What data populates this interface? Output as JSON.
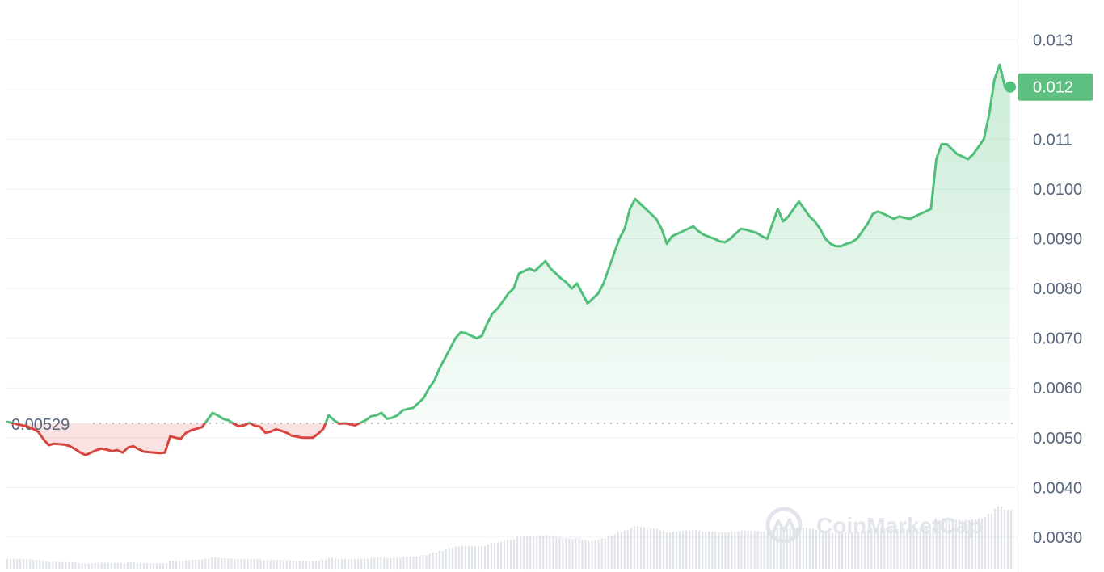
{
  "chart_data": {
    "type": "line",
    "title": "",
    "xlabel": "",
    "ylabel": "",
    "ylim": [
      0.0023,
      0.0138
    ],
    "yticks": [
      "0.013",
      "0.012",
      "0.011",
      "0.0100",
      "0.0090",
      "0.0080",
      "0.0070",
      "0.0060",
      "0.0050",
      "0.0040",
      "0.0030"
    ],
    "ytick_values": [
      0.013,
      0.012,
      0.011,
      0.01,
      0.009,
      0.008,
      0.007,
      0.006,
      0.005,
      0.004,
      0.003
    ],
    "reference": {
      "label": "0.00529",
      "value": 0.00529
    },
    "current_price": {
      "label": "0.012",
      "value": 0.01205
    },
    "grid": true,
    "colors": {
      "up": "#4fbf7a",
      "down": "#d8453f",
      "grid": "#eff2f5",
      "tag": "#5ec080",
      "axis_text": "#58667e",
      "volume": "#c9ced6"
    },
    "series": [
      {
        "values": [
          0.00532,
          0.0053,
          0.00527,
          0.00525,
          0.00522,
          0.00518,
          0.00512,
          0.00497,
          0.00485,
          0.00488,
          0.00487,
          0.00486,
          0.00483,
          0.00477,
          0.0047,
          0.00465,
          0.0047,
          0.00475,
          0.00478,
          0.00476,
          0.00473,
          0.00475,
          0.0047,
          0.0048,
          0.00483,
          0.00477,
          0.00472,
          0.00471,
          0.0047,
          0.00469,
          0.0047,
          0.00503,
          0.005,
          0.00498,
          0.0051,
          0.00515,
          0.00518,
          0.00521,
          0.00535,
          0.0055,
          0.00545,
          0.00538,
          0.00535,
          0.00528,
          0.00523,
          0.00525,
          0.0053,
          0.00524,
          0.00522,
          0.0051,
          0.00512,
          0.00517,
          0.00514,
          0.0051,
          0.00504,
          0.00502,
          0.005,
          0.005,
          0.005,
          0.00508,
          0.00518,
          0.00545,
          0.00535,
          0.00528,
          0.00529,
          0.00527,
          0.00525,
          0.0053,
          0.00535,
          0.00543,
          0.00545,
          0.0055,
          0.00538,
          0.0054,
          0.00545,
          0.00555,
          0.00558,
          0.0056,
          0.0057,
          0.0058,
          0.006,
          0.00615,
          0.0064,
          0.0066,
          0.0068,
          0.007,
          0.00712,
          0.0071,
          0.00705,
          0.007,
          0.00705,
          0.0073,
          0.0075,
          0.0076,
          0.00775,
          0.0079,
          0.008,
          0.0083,
          0.00835,
          0.0084,
          0.00835,
          0.00845,
          0.00855,
          0.0084,
          0.0083,
          0.0082,
          0.00812,
          0.008,
          0.0081,
          0.0079,
          0.0077,
          0.0078,
          0.0079,
          0.0081,
          0.0084,
          0.0087,
          0.009,
          0.0092,
          0.0096,
          0.0098,
          0.0097,
          0.0096,
          0.0095,
          0.0094,
          0.0092,
          0.0089,
          0.00905,
          0.0091,
          0.00915,
          0.0092,
          0.00925,
          0.00915,
          0.00908,
          0.00904,
          0.009,
          0.00895,
          0.00893,
          0.009,
          0.0091,
          0.0092,
          0.00918,
          0.00915,
          0.00912,
          0.00905,
          0.009,
          0.0093,
          0.0096,
          0.00935,
          0.00945,
          0.0096,
          0.00975,
          0.0096,
          0.00945,
          0.00935,
          0.0092,
          0.009,
          0.0089,
          0.00885,
          0.00885,
          0.0089,
          0.00893,
          0.009,
          0.00915,
          0.0093,
          0.0095,
          0.00955,
          0.0095,
          0.00945,
          0.0094,
          0.00945,
          0.00942,
          0.0094,
          0.00945,
          0.0095,
          0.00955,
          0.0096,
          0.0106,
          0.0109,
          0.0109,
          0.0108,
          0.0107,
          0.01065,
          0.0106,
          0.0107,
          0.01085,
          0.011,
          0.0115,
          0.0122,
          0.0125,
          0.01205,
          0.01205
        ]
      }
    ]
  },
  "watermark": {
    "text": "CoinMarketCap",
    "icon": "coinmarketcap-logo-icon"
  }
}
